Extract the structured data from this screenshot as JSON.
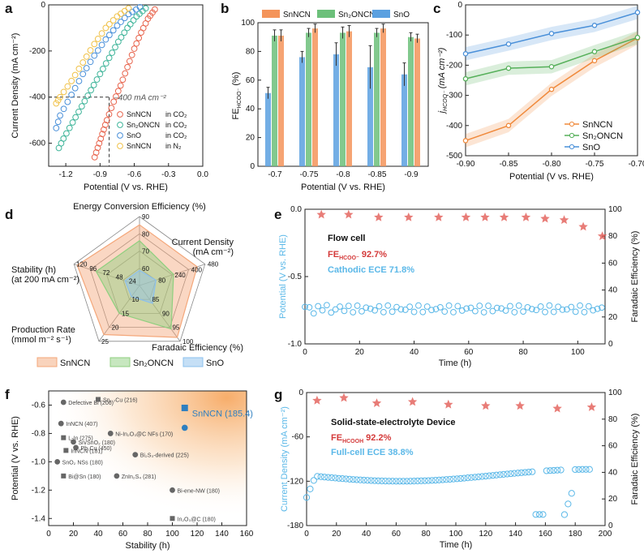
{
  "chart_data": [
    {
      "panel": "a",
      "type": "scatter",
      "xlabel": "Potential (V vs. RHE)",
      "ylabel": "Current Density (mA cm⁻²)",
      "xlim": [
        -1.35,
        0
      ],
      "ylim": [
        -700,
        0
      ],
      "xticks": [
        "-1.2",
        "-0.9",
        "-0.6",
        "-0.3",
        "0.0"
      ],
      "yticks": [
        "0",
        "-200",
        "-400",
        "-600"
      ],
      "annotation": "–400 mA cm⁻²",
      "reference": {
        "y": -400,
        "x": -0.82
      },
      "legend_position": "bottom-right",
      "series": [
        {
          "name": "SnNCN",
          "suffix": "in CO₂",
          "color": "#e8664f",
          "x": [
            -0.42,
            -0.48,
            -0.54,
            -0.6,
            -0.66,
            -0.72,
            -0.78,
            -0.84,
            -0.88,
            -0.92,
            -0.96
          ],
          "y": [
            -20,
            -60,
            -120,
            -190,
            -270,
            -350,
            -420,
            -500,
            -560,
            -620,
            -680
          ]
        },
        {
          "name": "Sn₂ONCN",
          "suffix": "in CO₂",
          "color": "#3fb59a",
          "x": [
            -0.5,
            -0.58,
            -0.66,
            -0.74,
            -0.82,
            -0.9,
            -0.98,
            -1.06,
            -1.14,
            -1.22,
            -1.28
          ],
          "y": [
            -15,
            -50,
            -100,
            -160,
            -230,
            -300,
            -370,
            -440,
            -510,
            -580,
            -640
          ]
        },
        {
          "name": "SnO",
          "suffix": "in CO₂",
          "color": "#4a90d9",
          "x": [
            -0.55,
            -0.65,
            -0.75,
            -0.85,
            -0.95,
            -1.05,
            -1.15,
            -1.25,
            -1.3
          ],
          "y": [
            -10,
            -40,
            -90,
            -150,
            -220,
            -300,
            -390,
            -480,
            -560
          ]
        },
        {
          "name": "SnNCN",
          "suffix": "in N₂",
          "color": "#f0c24a",
          "x": [
            -0.65,
            -0.75,
            -0.85,
            -0.95,
            -1.05,
            -1.15,
            -1.25,
            -1.3
          ],
          "y": [
            -15,
            -50,
            -100,
            -170,
            -250,
            -330,
            -400,
            -440
          ]
        }
      ]
    },
    {
      "panel": "b",
      "type": "bar",
      "xlabel": "Potential (V vs. RHE)",
      "ylabel": "FE",
      "ylabel_sub": "HCOO⁻",
      "ylabel_unit": "(%)",
      "ylim": [
        0,
        100
      ],
      "yticks": [
        "0",
        "20",
        "40",
        "60",
        "80",
        "100"
      ],
      "categories": [
        "-0.7",
        "-0.75",
        "-0.8",
        "-0.85",
        "-0.9"
      ],
      "legend_position": "top",
      "series": [
        {
          "name": "SnNCN",
          "color": "#f4945a",
          "values": [
            91,
            96,
            94,
            96,
            89
          ],
          "errors": [
            4,
            3,
            4,
            3,
            3
          ]
        },
        {
          "name": "Sn₂ONCN",
          "color": "#6cc07a",
          "values": [
            91,
            93,
            93,
            93,
            90
          ],
          "errors": [
            4,
            3,
            4,
            3,
            3
          ]
        },
        {
          "name": "SnO",
          "color": "#5aa0e0",
          "values": [
            51,
            76,
            78,
            69,
            64
          ],
          "errors": [
            4,
            4,
            8,
            15,
            8
          ]
        }
      ]
    },
    {
      "panel": "c",
      "type": "line",
      "xlabel": "Potential (V vs. RHE)",
      "ylabel": "j",
      "ylabel_sub": "HCOO⁻",
      "ylabel_unit": " (mA cm⁻²)",
      "xlim": [
        -0.9,
        -0.7
      ],
      "ylim": [
        -500,
        0
      ],
      "xticks": [
        "-0.90",
        "-0.85",
        "-0.80",
        "-0.75",
        "-0.70"
      ],
      "yticks": [
        "0",
        "-100",
        "-200",
        "-300",
        "-400",
        "-500"
      ],
      "legend_position": "bottom-right",
      "x": [
        -0.9,
        -0.85,
        -0.8,
        -0.75,
        -0.7
      ],
      "series": [
        {
          "name": "SnNCN",
          "color": "#f08a3c",
          "values": [
            -450,
            -400,
            -280,
            -185,
            -110
          ]
        },
        {
          "name": "Sn₂ONCN",
          "color": "#56b05a",
          "values": [
            -245,
            -210,
            -205,
            -155,
            -108
          ]
        },
        {
          "name": "SnO",
          "color": "#4a90d9",
          "values": [
            -162,
            -130,
            -95,
            -68,
            -25
          ]
        }
      ]
    },
    {
      "panel": "d",
      "type": "radar",
      "axes": [
        {
          "label": [
            "Energy Conversion Efficiency (%)"
          ],
          "max": 90,
          "ticks": [
            "60",
            "70",
            "80",
            "90"
          ]
        },
        {
          "label": [
            "Current Density",
            "(mA cm⁻²)"
          ],
          "max": 480,
          "ticks": [
            "80",
            "240",
            "400",
            "480"
          ]
        },
        {
          "label": [
            "Faradaic Efficiency (%)"
          ],
          "max": 100,
          "ticks": [
            "85",
            "90",
            "95",
            "100"
          ]
        },
        {
          "label": [
            "Production Rate",
            "(mmol m⁻² s⁻¹)"
          ],
          "max": 25,
          "ticks": [
            "10",
            "15",
            "20",
            "25"
          ]
        },
        {
          "label": [
            "Stability (h)",
            "(at 200 mA cm⁻²)"
          ],
          "max": 120,
          "ticks": [
            "24",
            "48",
            "72",
            "96",
            "120"
          ]
        }
      ],
      "series": [
        {
          "name": "SnNCN",
          "color": "#f4a77a",
          "values": [
            0.88,
            0.88,
            0.93,
            0.88,
            0.95
          ]
        },
        {
          "name": "Sn₂ONCN",
          "color": "#8fcf7f",
          "values": [
            0.65,
            0.52,
            0.78,
            0.5,
            0.66
          ]
        },
        {
          "name": "SnO",
          "color": "#8cc0ee",
          "values": [
            0.22,
            0.25,
            0.32,
            0.2,
            0.22
          ]
        }
      ]
    },
    {
      "panel": "e",
      "type": "scatter",
      "xlabel": "Time (h)",
      "ylabel": "Potential (V vs. RHE)",
      "y2label": "Faradaic Efficiency (%)",
      "xlim": [
        0,
        110
      ],
      "ylim": [
        -1.0,
        0
      ],
      "y2lim": [
        0,
        100
      ],
      "xticks": [
        "0",
        "20",
        "40",
        "60",
        "80",
        "100"
      ],
      "yticks": [
        "0.0",
        "-0.5",
        "-1.0"
      ],
      "y2ticks": [
        "0",
        "20",
        "40",
        "60",
        "80",
        "100"
      ],
      "annotation_title": "Flow cell",
      "annotation_fe_main": "FE",
      "annotation_fe_sub": "HCOO⁻",
      "annotation_fe_value": " 92.7%",
      "annotation_ece": "Cathodic ECE 71.8%",
      "potential_color": "#5bb8e8",
      "fe_color": "#e0504a",
      "fe_points": {
        "x": [
          6,
          16,
          27,
          38,
          49,
          59,
          66,
          73,
          81,
          88,
          95,
          102,
          109
        ],
        "y": [
          96,
          96,
          94,
          94,
          94,
          94,
          94,
          94,
          94,
          93,
          92,
          87,
          80
        ]
      },
      "potential_level": -0.74
    },
    {
      "panel": "f",
      "type": "scatter",
      "xlabel": "Stability (h)",
      "ylabel": "Potential (V vs. RHE)",
      "xlim": [
        0,
        160
      ],
      "ylim": [
        -1.45,
        -0.5
      ],
      "xticks": [
        "0",
        "20",
        "40",
        "60",
        "80",
        "100",
        "120",
        "140",
        "160"
      ],
      "yticks": [
        "-0.6",
        "-0.8",
        "-1.0",
        "-1.2",
        "-1.4"
      ],
      "highlight": {
        "label": "SnNCN (185.4)",
        "x": 110,
        "y": [
          -0.62,
          -0.76
        ],
        "color": "#2e7fc0"
      },
      "points": [
        {
          "label": "Defective Bi (206)",
          "x": 12,
          "y": -0.58
        },
        {
          "label": "Sn₁.₇Cu (216)",
          "x": 40,
          "y": -0.56
        },
        {
          "label": "InNCN (407)",
          "x": 10,
          "y": -0.73
        },
        {
          "label": "Ni-In₂O₃@C NFs (170)",
          "x": 50,
          "y": -0.8
        },
        {
          "label": "L-In (275)",
          "x": 12,
          "y": -0.83
        },
        {
          "label": "Sn/SnO₂ (180)",
          "x": 20,
          "y": -0.86
        },
        {
          "label": "Pb₁Cu (450)",
          "x": 22,
          "y": -0.9
        },
        {
          "label": "InNCN (181)",
          "x": 14,
          "y": -0.92
        },
        {
          "label": "Bi₂S₃-derived (225)",
          "x": 70,
          "y": -0.95
        },
        {
          "label": "SnO₂ NSs (180)",
          "x": 7,
          "y": -1.0
        },
        {
          "label": "Bi@Sn (180)",
          "x": 12,
          "y": -1.1
        },
        {
          "label": "ZnIn₂S₄ (281)",
          "x": 55,
          "y": -1.1
        },
        {
          "label": "Bi-ene-NW (180)",
          "x": 100,
          "y": -1.2
        },
        {
          "label": "In₂O₃@C (180)",
          "x": 100,
          "y": -1.4
        }
      ]
    },
    {
      "panel": "g",
      "type": "scatter",
      "xlabel": "Time (h)",
      "ylabel": "Current Density (mA cm⁻²)",
      "y2label": "Faradaic Efficiency (%)",
      "xlim": [
        0,
        200
      ],
      "ylim": [
        -180,
        0
      ],
      "y2lim": [
        0,
        100
      ],
      "xticks": [
        "0",
        "20",
        "40",
        "60",
        "80",
        "100",
        "120",
        "140",
        "160",
        "180",
        "200"
      ],
      "yticks": [
        "0",
        "-60",
        "-120",
        "-180"
      ],
      "y2ticks": [
        "0",
        "20",
        "40",
        "60",
        "80",
        "100"
      ],
      "annotation_title": "Solid-state-electrolyte Device",
      "annotation_fe_main": "FE",
      "annotation_fe_sub": "HCOOH",
      "annotation_fe_value": " 92.2%",
      "annotation_ece": "Full-cell ECE 38.8%",
      "current_color": "#5bb8e8",
      "fe_color": "#e0504a",
      "fe_points": {
        "x": [
          7,
          25,
          47,
          71,
          95,
          120,
          143,
          168,
          191
        ],
        "y": [
          94,
          96,
          92,
          93,
          91,
          90,
          90,
          88,
          89
        ]
      },
      "current_level": -112
    }
  ],
  "panel_labels": [
    "a",
    "b",
    "c",
    "d",
    "e",
    "f",
    "g"
  ]
}
